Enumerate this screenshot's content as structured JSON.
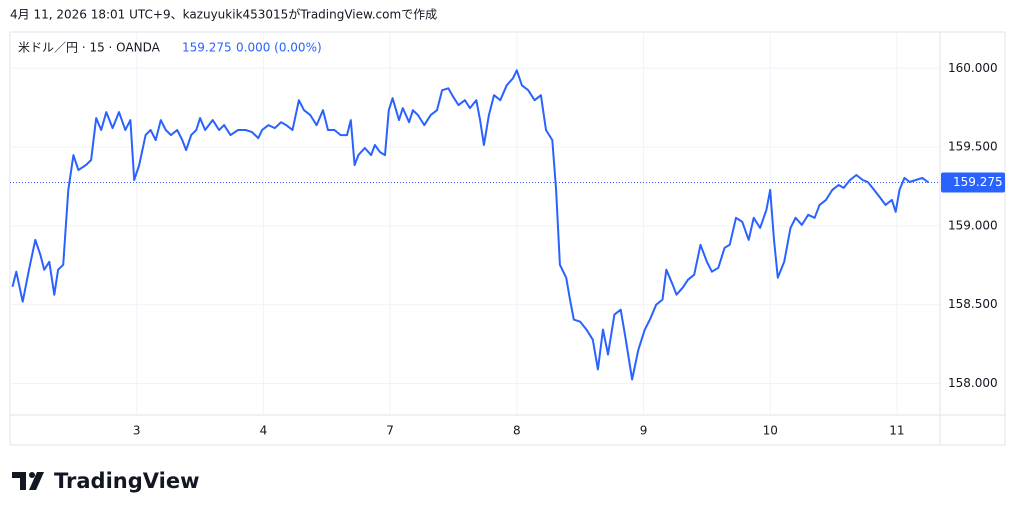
{
  "caption": "4月 11, 2026 18:01 UTC+9、kazuyukik453015がTradingView.comで作成",
  "chart_data": {
    "type": "line",
    "symbol": "米ドル／円 · 15 · OANDA",
    "price": "159.275",
    "change": "0.000 (0.00%)",
    "x": [
      0.02,
      0.05,
      0.1,
      0.15,
      0.2,
      0.24,
      0.27,
      0.31,
      0.35,
      0.38,
      0.42,
      0.46,
      0.5,
      0.54,
      0.6,
      0.64,
      0.68,
      0.72,
      0.76,
      0.81,
      0.86,
      0.91,
      0.95,
      0.98,
      1.02,
      1.07,
      1.11,
      1.15,
      1.19,
      1.23,
      1.27,
      1.32,
      1.36,
      1.39,
      1.43,
      1.47,
      1.5,
      1.54,
      1.6,
      1.65,
      1.69,
      1.74,
      1.8,
      1.86,
      1.91,
      1.96,
      1.99,
      2.04,
      2.09,
      2.14,
      2.18,
      2.23,
      2.28,
      2.32,
      2.37,
      2.42,
      2.47,
      2.51,
      2.56,
      2.61,
      2.66,
      2.69,
      2.72,
      2.75,
      2.8,
      2.85,
      2.88,
      2.92,
      2.96,
      2.99,
      3.02,
      3.07,
      3.1,
      3.15,
      3.18,
      3.22,
      3.27,
      3.32,
      3.37,
      3.41,
      3.46,
      3.49,
      3.54,
      3.59,
      3.63,
      3.68,
      3.71,
      3.74,
      3.78,
      3.82,
      3.87,
      3.92,
      3.97,
      4.0,
      4.04,
      4.09,
      4.14,
      4.19,
      4.23,
      4.28,
      4.31,
      4.34,
      4.39,
      4.42,
      4.45,
      4.5,
      4.55,
      4.6,
      4.64,
      4.68,
      4.72,
      4.77,
      4.82,
      4.86,
      4.91,
      4.96,
      5.01,
      5.05,
      5.1,
      5.15,
      5.18,
      5.23,
      5.26,
      5.31,
      5.35,
      5.4,
      5.45,
      5.5,
      5.54,
      5.59,
      5.64,
      5.68,
      5.73,
      5.78,
      5.83,
      5.87,
      5.92,
      5.97,
      6.0,
      6.03,
      6.06,
      6.11,
      6.16,
      6.2,
      6.25,
      6.3,
      6.35,
      6.39,
      6.44,
      6.49,
      6.54,
      6.58,
      6.63,
      6.68,
      6.73,
      6.77,
      6.82,
      6.87,
      6.91,
      6.96,
      6.99,
      7.02,
      7.06,
      7.1,
      7.15,
      7.2,
      7.25
    ],
    "series": [
      {
        "name": "米ドル／円",
        "color": "#2962ff",
        "values": [
          158.614,
          158.709,
          158.519,
          158.722,
          158.911,
          158.816,
          158.722,
          158.772,
          158.563,
          158.722,
          158.753,
          159.228,
          159.449,
          159.354,
          159.386,
          159.418,
          159.684,
          159.608,
          159.722,
          159.62,
          159.722,
          159.608,
          159.671,
          159.291,
          159.386,
          159.576,
          159.608,
          159.544,
          159.671,
          159.608,
          159.576,
          159.608,
          159.544,
          159.481,
          159.576,
          159.608,
          159.684,
          159.608,
          159.671,
          159.608,
          159.639,
          159.576,
          159.608,
          159.608,
          159.595,
          159.557,
          159.608,
          159.639,
          159.62,
          159.658,
          159.639,
          159.608,
          159.797,
          159.734,
          159.703,
          159.639,
          159.734,
          159.608,
          159.608,
          159.576,
          159.576,
          159.671,
          159.386,
          159.449,
          159.494,
          159.449,
          159.513,
          159.468,
          159.449,
          159.734,
          159.81,
          159.671,
          159.747,
          159.658,
          159.734,
          159.703,
          159.639,
          159.703,
          159.734,
          159.861,
          159.873,
          159.829,
          159.766,
          159.797,
          159.747,
          159.797,
          159.671,
          159.513,
          159.703,
          159.829,
          159.797,
          159.892,
          159.937,
          159.987,
          159.892,
          159.861,
          159.797,
          159.829,
          159.608,
          159.544,
          159.228,
          158.753,
          158.671,
          158.532,
          158.405,
          158.392,
          158.342,
          158.278,
          158.089,
          158.342,
          158.184,
          158.437,
          158.468,
          158.278,
          158.025,
          158.215,
          158.342,
          158.405,
          158.5,
          158.532,
          158.722,
          158.627,
          158.563,
          158.608,
          158.658,
          158.69,
          158.88,
          158.772,
          158.709,
          158.734,
          158.861,
          158.88,
          159.051,
          159.025,
          158.911,
          159.051,
          158.987,
          159.101,
          159.228,
          158.911,
          158.671,
          158.772,
          158.987,
          159.051,
          159.006,
          159.07,
          159.051,
          159.133,
          159.165,
          159.228,
          159.259,
          159.241,
          159.291,
          159.323,
          159.291,
          159.278,
          159.228,
          159.177,
          159.133,
          159.165,
          159.089,
          159.228,
          159.304,
          159.278,
          159.291,
          159.304,
          159.275
        ]
      }
    ],
    "price_line": 159.275,
    "xlim": [
      0,
      7.34
    ],
    "ylim": [
      157.8,
      160.23
    ],
    "xticks": [
      {
        "value": 1,
        "label": "3"
      },
      {
        "value": 2,
        "label": "4"
      },
      {
        "value": 3,
        "label": "7"
      },
      {
        "value": 4,
        "label": "8"
      },
      {
        "value": 5,
        "label": "9"
      },
      {
        "value": 6,
        "label": "10"
      },
      {
        "value": 7,
        "label": "11"
      }
    ],
    "yticks": [
      {
        "value": 158,
        "label": "158.000"
      },
      {
        "value": 158.5,
        "label": "158.500"
      },
      {
        "value": 159,
        "label": "159.000"
      },
      {
        "value": 159.5,
        "label": "159.500"
      },
      {
        "value": 160,
        "label": "160.000"
      }
    ],
    "grid": true
  },
  "brand": "TradingView"
}
